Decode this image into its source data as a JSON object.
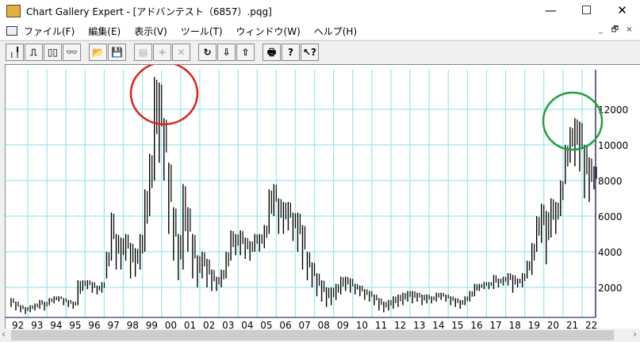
{
  "window": {
    "title": "Chart Gallery Expert - [アドバンテスト（6857）.pqg]",
    "minimize": "—",
    "maximize": "☐",
    "close": "✕"
  },
  "menu": [
    "ファイル(F)",
    "編集(E)",
    "表示(V)",
    "ツール(T)",
    "ウィンドウ(W)",
    "ヘルプ(H)"
  ],
  "mdi": {
    "minimize": "_",
    "restore": "🗗",
    "close": "×"
  },
  "toolbar": [
    {
      "name": "bar-chart",
      "glyph": "╷╿"
    },
    {
      "name": "step-line",
      "glyph": "⎍"
    },
    {
      "name": "double-box",
      "glyph": "▯▯"
    },
    {
      "name": "binoculars",
      "glyph": "👓"
    },
    null,
    {
      "name": "open",
      "glyph": "📂"
    },
    {
      "name": "save",
      "glyph": "💾"
    },
    null,
    {
      "name": "properties",
      "glyph": "▤",
      "disabled": true
    },
    {
      "name": "add",
      "glyph": "+",
      "disabled": true
    },
    {
      "name": "delete",
      "glyph": "✕",
      "disabled": true
    },
    null,
    {
      "name": "refresh",
      "glyph": "↻"
    },
    {
      "name": "download",
      "glyph": "⇩"
    },
    {
      "name": "upload",
      "glyph": "⇧"
    },
    null,
    {
      "name": "print",
      "glyph": "🖶"
    },
    {
      "name": "help",
      "glyph": "?"
    },
    {
      "name": "context-help",
      "glyph": "↖?"
    }
  ],
  "chart_data": {
    "type": "bar",
    "subtype": "high-low (quarterly)",
    "title": "",
    "x_tick_labels": [
      "92",
      "93",
      "94",
      "95",
      "96",
      "97",
      "98",
      "99",
      "00",
      "01",
      "02",
      "03",
      "04",
      "05",
      "06",
      "07",
      "08",
      "09",
      "10",
      "11",
      "12",
      "13",
      "14",
      "15",
      "16",
      "17",
      "18",
      "19",
      "20",
      "21",
      "22"
    ],
    "y_tick_labels": [
      "2000",
      "4000",
      "6000",
      "8000",
      "10000",
      "12000"
    ],
    "y_ticks": [
      2000,
      4000,
      6000,
      8000,
      10000,
      12000
    ],
    "ylim": [
      0,
      14000
    ],
    "grid": true,
    "grid_color": "#9ee8ee",
    "bars_low_high": [
      [
        900,
        1400
      ],
      [
        700,
        1200
      ],
      [
        600,
        1000
      ],
      [
        500,
        900
      ],
      [
        600,
        1000
      ],
      [
        700,
        1100
      ],
      [
        800,
        1300
      ],
      [
        700,
        1200
      ],
      [
        1000,
        1400
      ],
      [
        1100,
        1500
      ],
      [
        1200,
        1500
      ],
      [
        1000,
        1400
      ],
      [
        900,
        1300
      ],
      [
        800,
        1200
      ],
      [
        1000,
        2400
      ],
      [
        1800,
        2400
      ],
      [
        1900,
        2400
      ],
      [
        1700,
        2300
      ],
      [
        1600,
        2100
      ],
      [
        1700,
        2300
      ],
      [
        2500,
        4000
      ],
      [
        3500,
        6200
      ],
      [
        3000,
        5000
      ],
      [
        3000,
        4800
      ],
      [
        3500,
        5000
      ],
      [
        2500,
        4500
      ],
      [
        2600,
        4200
      ],
      [
        3000,
        5000
      ],
      [
        4000,
        7500
      ],
      [
        6000,
        9500
      ],
      [
        8000,
        13800
      ],
      [
        9000,
        13500
      ],
      [
        8000,
        11500
      ],
      [
        5000,
        9000
      ],
      [
        3500,
        6500
      ],
      [
        2400,
        5000
      ],
      [
        3000,
        7800
      ],
      [
        4000,
        6500
      ],
      [
        2500,
        5000
      ],
      [
        2000,
        3800
      ],
      [
        2500,
        4000
      ],
      [
        2000,
        3600
      ],
      [
        1800,
        3000
      ],
      [
        1800,
        2600
      ],
      [
        2000,
        3000
      ],
      [
        2500,
        4000
      ],
      [
        3500,
        5200
      ],
      [
        3800,
        5000
      ],
      [
        3800,
        5200
      ],
      [
        3600,
        4800
      ],
      [
        3500,
        4600
      ],
      [
        4000,
        5000
      ],
      [
        4000,
        5000
      ],
      [
        4200,
        5500
      ],
      [
        5000,
        7500
      ],
      [
        6000,
        7800
      ],
      [
        5000,
        7000
      ],
      [
        5000,
        6800
      ],
      [
        5200,
        6800
      ],
      [
        4600,
        6200
      ],
      [
        4000,
        6200
      ],
      [
        3000,
        5500
      ],
      [
        2400,
        4000
      ],
      [
        2000,
        3400
      ],
      [
        1500,
        2800
      ],
      [
        1200,
        2400
      ],
      [
        900,
        2000
      ],
      [
        1000,
        2000
      ],
      [
        1300,
        2200
      ],
      [
        1600,
        2600
      ],
      [
        1800,
        2600
      ],
      [
        1700,
        2500
      ],
      [
        1600,
        2200
      ],
      [
        1500,
        2100
      ],
      [
        1300,
        1900
      ],
      [
        1200,
        1800
      ],
      [
        1000,
        1600
      ],
      [
        700,
        1400
      ],
      [
        600,
        1200
      ],
      [
        700,
        1300
      ],
      [
        800,
        1500
      ],
      [
        900,
        1600
      ],
      [
        1000,
        1700
      ],
      [
        1200,
        1800
      ],
      [
        1100,
        1800
      ],
      [
        1200,
        1700
      ],
      [
        1000,
        1600
      ],
      [
        1100,
        1600
      ],
      [
        1100,
        1500
      ],
      [
        1200,
        1700
      ],
      [
        1300,
        1700
      ],
      [
        1200,
        1600
      ],
      [
        1000,
        1500
      ],
      [
        900,
        1400
      ],
      [
        800,
        1300
      ],
      [
        1000,
        1500
      ],
      [
        1200,
        1800
      ],
      [
        1500,
        2200
      ],
      [
        1800,
        2200
      ],
      [
        1900,
        2300
      ],
      [
        1900,
        2300
      ],
      [
        1900,
        2700
      ],
      [
        2000,
        2500
      ],
      [
        2100,
        2600
      ],
      [
        2100,
        2800
      ],
      [
        1700,
        2700
      ],
      [
        2000,
        2500
      ],
      [
        2000,
        2800
      ],
      [
        2500,
        3500
      ],
      [
        2700,
        4500
      ],
      [
        4000,
        6000
      ],
      [
        4500,
        6700
      ],
      [
        3300,
        6300
      ],
      [
        4800,
        7000
      ],
      [
        5000,
        6800
      ],
      [
        6000,
        8000
      ],
      [
        7800,
        10000
      ],
      [
        9000,
        11000
      ],
      [
        8800,
        11500
      ],
      [
        8500,
        11300
      ],
      [
        7000,
        10000
      ],
      [
        6800,
        9300
      ],
      [
        7500,
        8800
      ]
    ],
    "annotations": [
      {
        "shape": "circle",
        "color": "#e02020",
        "around_year": "99-00"
      },
      {
        "shape": "circle",
        "color": "#20a040",
        "around_year": "21"
      }
    ]
  }
}
